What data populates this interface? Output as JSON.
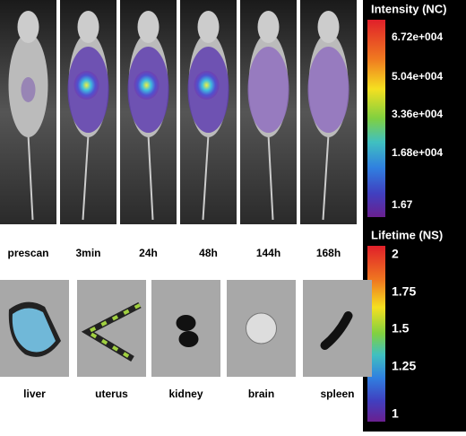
{
  "time_points": [
    "prescan",
    "3min",
    "24h",
    "48h",
    "144h",
    "168h"
  ],
  "organs": [
    "liver",
    "uterus",
    "kidney",
    "brain",
    "spleen"
  ],
  "intensity_scale": {
    "title": "Intensity (NC)",
    "labels": [
      "6.72e+004",
      "5.04e+004",
      "3.36e+004",
      "1.68e+004",
      "1.67"
    ]
  },
  "lifetime_scale": {
    "title": "Lifetime (NS)",
    "labels": [
      "2",
      "1.75",
      "1.5",
      "1.25",
      "1"
    ]
  }
}
